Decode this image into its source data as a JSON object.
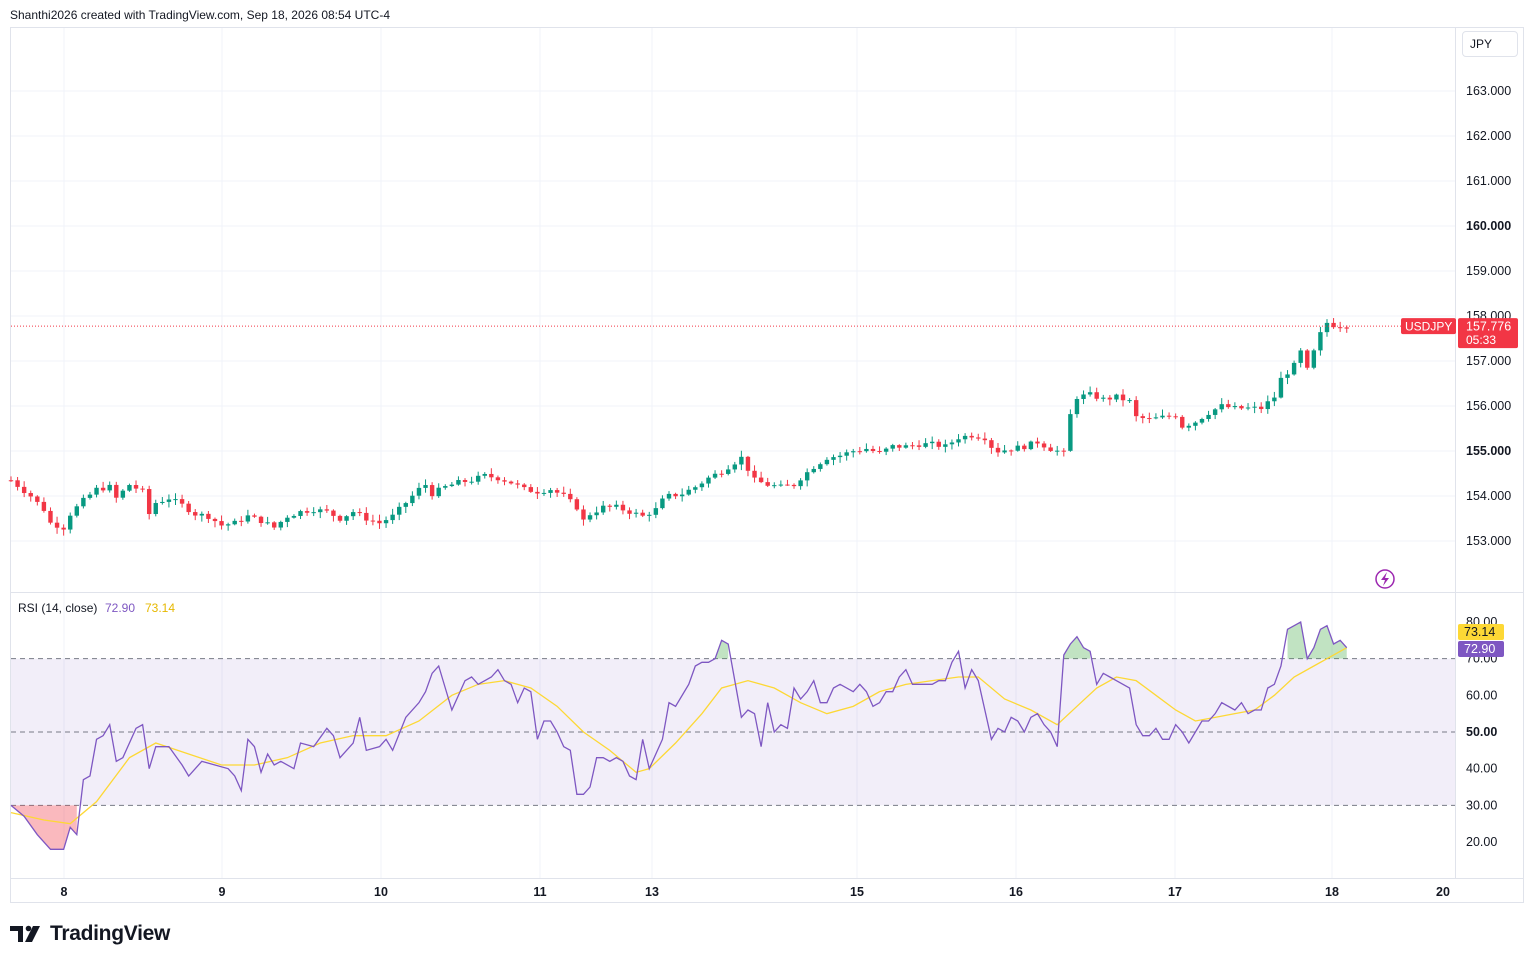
{
  "header": {
    "text": "Shanthi2026 created with TradingView.com, Sep 18, 2026 08:54 UTC-4"
  },
  "footer": {
    "brand": "TradingView"
  },
  "currency": "JPY",
  "colors": {
    "up": "#089981",
    "down": "#f23645",
    "rsi_line": "#7e57c2",
    "rsi_ma": "#fdd835",
    "rsi_band": "#7e57c2",
    "grid": "#f0f3fa",
    "text": "#131722"
  },
  "chart_data": [
    {
      "type": "candlestick",
      "symbol": "USDJPY",
      "last_price": "157.776",
      "countdown": "05:33",
      "y_ticks": [
        "163.000",
        "162.000",
        "161.000",
        "160.000",
        "159.000",
        "158.000",
        "157.000",
        "156.000",
        "155.000",
        "154.000",
        "153.000"
      ],
      "ylim": [
        152.0,
        164.2
      ],
      "x_ticks": [
        "8",
        "8",
        "9",
        "10",
        "11",
        "13",
        "15",
        "16",
        "17",
        "18",
        "20"
      ],
      "close_path": [
        [
          0,
          154.35
        ],
        [
          3,
          154.0
        ],
        [
          5,
          153.7
        ],
        [
          6,
          153.4
        ],
        [
          8,
          153.3
        ],
        [
          9,
          153.6
        ],
        [
          11,
          153.9
        ],
        [
          13,
          154.15
        ],
        [
          15,
          154.2
        ],
        [
          16,
          153.95
        ],
        [
          18,
          154.25
        ],
        [
          20,
          154.1
        ],
        [
          21,
          153.6
        ],
        [
          22,
          153.85
        ],
        [
          24,
          153.95
        ],
        [
          26,
          153.8
        ],
        [
          28,
          153.6
        ],
        [
          30,
          153.55
        ],
        [
          32,
          153.35
        ],
        [
          34,
          153.4
        ],
        [
          36,
          153.55
        ],
        [
          38,
          153.45
        ],
        [
          40,
          153.3
        ],
        [
          42,
          153.55
        ],
        [
          44,
          153.65
        ],
        [
          46,
          153.7
        ],
        [
          48,
          153.65
        ],
        [
          50,
          153.5
        ],
        [
          52,
          153.65
        ],
        [
          54,
          153.5
        ],
        [
          56,
          153.4
        ],
        [
          58,
          153.55
        ],
        [
          60,
          153.85
        ],
        [
          62,
          154.15
        ],
        [
          63,
          154.25
        ],
        [
          64,
          154.05
        ],
        [
          66,
          154.2
        ],
        [
          68,
          154.3
        ],
        [
          70,
          154.35
        ],
        [
          72,
          154.45
        ],
        [
          74,
          154.4
        ],
        [
          76,
          154.3
        ],
        [
          78,
          154.15
        ],
        [
          80,
          154.1
        ],
        [
          82,
          154.15
        ],
        [
          84,
          154.0
        ],
        [
          86,
          153.75
        ],
        [
          87,
          153.45
        ],
        [
          88,
          153.6
        ],
        [
          90,
          153.75
        ],
        [
          92,
          153.75
        ],
        [
          94,
          153.65
        ],
        [
          96,
          153.55
        ],
        [
          98,
          153.7
        ],
        [
          99,
          153.9
        ],
        [
          100,
          154.0
        ],
        [
          102,
          154.05
        ],
        [
          104,
          154.2
        ],
        [
          106,
          154.4
        ],
        [
          108,
          154.55
        ],
        [
          110,
          154.75
        ],
        [
          111,
          154.85
        ],
        [
          112,
          154.6
        ],
        [
          113,
          154.35
        ],
        [
          115,
          154.25
        ],
        [
          117,
          154.2
        ],
        [
          119,
          154.25
        ],
        [
          120,
          154.4
        ],
        [
          122,
          154.65
        ],
        [
          124,
          154.85
        ],
        [
          126,
          154.9
        ],
        [
          128,
          155.0
        ],
        [
          130,
          155.05
        ],
        [
          132,
          154.95
        ],
        [
          134,
          155.1
        ],
        [
          136,
          155.1
        ],
        [
          138,
          155.15
        ],
        [
          140,
          155.15
        ],
        [
          142,
          155.1
        ],
        [
          144,
          155.3
        ],
        [
          146,
          155.35
        ],
        [
          148,
          155.3
        ],
        [
          149,
          155.1
        ],
        [
          150,
          155.0
        ],
        [
          152,
          155.05
        ],
        [
          154,
          155.1
        ],
        [
          156,
          155.2
        ],
        [
          158,
          155.05
        ],
        [
          160,
          154.95
        ],
        [
          161,
          155.8
        ],
        [
          162,
          156.2
        ],
        [
          164,
          156.25
        ],
        [
          166,
          156.15
        ],
        [
          168,
          156.2
        ],
        [
          170,
          156.1
        ],
        [
          171,
          155.75
        ],
        [
          173,
          155.7
        ],
        [
          175,
          155.75
        ],
        [
          177,
          155.8
        ],
        [
          178,
          155.55
        ],
        [
          180,
          155.65
        ],
        [
          182,
          155.85
        ],
        [
          184,
          156.0
        ],
        [
          186,
          155.95
        ],
        [
          188,
          155.95
        ],
        [
          190,
          155.95
        ],
        [
          192,
          156.2
        ],
        [
          193,
          156.6
        ],
        [
          195,
          156.9
        ],
        [
          196,
          157.2
        ],
        [
          197,
          156.8
        ],
        [
          198,
          157.2
        ],
        [
          199,
          157.6
        ],
        [
          200,
          157.85
        ],
        [
          201,
          157.8
        ],
        [
          203,
          157.78
        ]
      ]
    },
    {
      "type": "line",
      "title": "RSI (14, close)",
      "series": [
        {
          "name": "RSI",
          "last": "72.90"
        },
        {
          "name": "MA",
          "last": "73.14"
        }
      ],
      "y_ticks": [
        "80.00",
        "70.00",
        "60.00",
        "50.00",
        "40.00",
        "30.00",
        "20.00"
      ],
      "ylim": [
        12,
        85
      ],
      "band": [
        30,
        70
      ],
      "mid": 50,
      "rsi_path": [
        [
          0,
          30
        ],
        [
          2,
          27
        ],
        [
          4,
          22
        ],
        [
          6,
          18
        ],
        [
          8,
          18
        ],
        [
          9,
          24
        ],
        [
          10,
          22
        ],
        [
          11,
          37
        ],
        [
          12,
          38
        ],
        [
          13,
          48
        ],
        [
          14,
          49
        ],
        [
          15,
          52
        ],
        [
          16,
          42
        ],
        [
          17,
          43
        ],
        [
          19,
          51
        ],
        [
          20,
          52
        ],
        [
          21,
          40
        ],
        [
          22,
          46
        ],
        [
          24,
          46
        ],
        [
          26,
          41
        ],
        [
          27,
          38
        ],
        [
          29,
          42
        ],
        [
          31,
          41
        ],
        [
          33,
          40
        ],
        [
          34,
          38
        ],
        [
          35,
          34
        ],
        [
          36,
          48
        ],
        [
          37,
          46
        ],
        [
          38,
          39
        ],
        [
          39,
          44
        ],
        [
          40,
          41
        ],
        [
          41,
          42
        ],
        [
          43,
          40
        ],
        [
          44,
          47
        ],
        [
          46,
          46
        ],
        [
          48,
          51
        ],
        [
          49,
          49
        ],
        [
          50,
          43
        ],
        [
          52,
          47
        ],
        [
          53,
          54
        ],
        [
          54,
          45
        ],
        [
          56,
          46
        ],
        [
          57,
          48
        ],
        [
          58,
          45
        ],
        [
          60,
          54
        ],
        [
          62,
          58
        ],
        [
          63,
          61
        ],
        [
          64,
          66
        ],
        [
          65,
          68
        ],
        [
          66,
          62
        ],
        [
          67,
          56
        ],
        [
          68,
          60
        ],
        [
          69,
          64
        ],
        [
          70,
          65
        ],
        [
          71,
          63
        ],
        [
          72,
          64
        ],
        [
          73,
          65
        ],
        [
          74,
          67
        ],
        [
          75,
          64
        ],
        [
          76,
          63
        ],
        [
          77,
          58
        ],
        [
          78,
          62
        ],
        [
          79,
          61
        ],
        [
          80,
          48
        ],
        [
          81,
          53
        ],
        [
          82,
          53
        ],
        [
          83,
          50
        ],
        [
          84,
          46
        ],
        [
          85,
          45
        ],
        [
          86,
          33
        ],
        [
          87,
          33
        ],
        [
          88,
          35
        ],
        [
          89,
          43
        ],
        [
          90,
          43
        ],
        [
          91,
          42
        ],
        [
          92,
          43
        ],
        [
          93,
          42
        ],
        [
          94,
          38
        ],
        [
          95,
          37
        ],
        [
          96,
          48
        ],
        [
          97,
          40
        ],
        [
          98,
          44
        ],
        [
          99,
          48
        ],
        [
          100,
          58
        ],
        [
          101,
          57
        ],
        [
          103,
          63
        ],
        [
          104,
          68
        ],
        [
          105,
          69
        ],
        [
          106,
          69
        ],
        [
          107,
          70
        ],
        [
          108,
          75
        ],
        [
          109,
          74
        ],
        [
          110,
          64
        ],
        [
          111,
          54
        ],
        [
          112,
          56
        ],
        [
          113,
          55
        ],
        [
          114,
          46
        ],
        [
          115,
          58
        ],
        [
          116,
          50
        ],
        [
          117,
          52
        ],
        [
          118,
          51
        ],
        [
          119,
          62
        ],
        [
          120,
          59
        ],
        [
          121,
          61
        ],
        [
          122,
          64
        ],
        [
          123,
          58
        ],
        [
          124,
          58
        ],
        [
          125,
          62
        ],
        [
          126,
          63
        ],
        [
          128,
          61
        ],
        [
          129,
          63
        ],
        [
          130,
          61
        ],
        [
          131,
          57
        ],
        [
          132,
          58
        ],
        [
          133,
          61
        ],
        [
          134,
          61
        ],
        [
          135,
          65
        ],
        [
          136,
          67
        ],
        [
          137,
          63
        ],
        [
          138,
          63
        ],
        [
          139,
          63
        ],
        [
          140,
          63
        ],
        [
          141,
          64
        ],
        [
          142,
          64
        ],
        [
          143,
          69
        ],
        [
          144,
          72
        ],
        [
          145,
          62
        ],
        [
          146,
          67
        ],
        [
          147,
          64
        ],
        [
          148,
          56
        ],
        [
          149,
          48
        ],
        [
          150,
          51
        ],
        [
          151,
          50
        ],
        [
          152,
          54
        ],
        [
          153,
          53
        ],
        [
          154,
          50
        ],
        [
          155,
          54
        ],
        [
          156,
          55
        ],
        [
          157,
          52
        ],
        [
          158,
          50
        ],
        [
          159,
          46
        ],
        [
          160,
          71
        ],
        [
          161,
          74
        ],
        [
          162,
          76
        ],
        [
          163,
          73
        ],
        [
          164,
          72
        ],
        [
          165,
          63
        ],
        [
          166,
          66
        ],
        [
          167,
          65
        ],
        [
          168,
          64
        ],
        [
          170,
          62
        ],
        [
          171,
          52
        ],
        [
          172,
          49
        ],
        [
          173,
          49
        ],
        [
          174,
          51
        ],
        [
          175,
          48
        ],
        [
          176,
          48
        ],
        [
          177,
          52
        ],
        [
          178,
          50
        ],
        [
          179,
          47
        ],
        [
          180,
          50
        ],
        [
          181,
          53
        ],
        [
          182,
          53
        ],
        [
          183,
          55
        ],
        [
          184,
          58
        ],
        [
          186,
          56
        ],
        [
          187,
          58
        ],
        [
          188,
          55
        ],
        [
          189,
          56
        ],
        [
          190,
          56
        ],
        [
          191,
          62
        ],
        [
          192,
          63
        ],
        [
          193,
          68
        ],
        [
          194,
          78
        ],
        [
          195,
          79
        ],
        [
          196,
          80
        ],
        [
          197,
          70
        ],
        [
          198,
          73
        ],
        [
          199,
          78
        ],
        [
          200,
          79
        ],
        [
          201,
          74
        ],
        [
          202,
          75
        ],
        [
          203,
          73
        ]
      ],
      "ma_path": [
        [
          0,
          28
        ],
        [
          5,
          26
        ],
        [
          9,
          25
        ],
        [
          13,
          31
        ],
        [
          18,
          43
        ],
        [
          22,
          47
        ],
        [
          27,
          44
        ],
        [
          32,
          41
        ],
        [
          37,
          41
        ],
        [
          42,
          43
        ],
        [
          47,
          47
        ],
        [
          52,
          49
        ],
        [
          57,
          49
        ],
        [
          62,
          53
        ],
        [
          67,
          60
        ],
        [
          71,
          63
        ],
        [
          75,
          64
        ],
        [
          79,
          62
        ],
        [
          83,
          57
        ],
        [
          87,
          50
        ],
        [
          91,
          45
        ],
        [
          95,
          39
        ],
        [
          97,
          40
        ],
        [
          101,
          47
        ],
        [
          105,
          55
        ],
        [
          108,
          62
        ],
        [
          112,
          64
        ],
        [
          116,
          62
        ],
        [
          120,
          58
        ],
        [
          124,
          55
        ],
        [
          128,
          57
        ],
        [
          132,
          61
        ],
        [
          136,
          63
        ],
        [
          140,
          64
        ],
        [
          144,
          65
        ],
        [
          147,
          65
        ],
        [
          151,
          59
        ],
        [
          155,
          56
        ],
        [
          159,
          52
        ],
        [
          162,
          57
        ],
        [
          165,
          62
        ],
        [
          168,
          65
        ],
        [
          171,
          64
        ],
        [
          174,
          60
        ],
        [
          177,
          56
        ],
        [
          180,
          53
        ],
        [
          183,
          54
        ],
        [
          186,
          55
        ],
        [
          189,
          56
        ],
        [
          192,
          60
        ],
        [
          195,
          65
        ],
        [
          198,
          68
        ],
        [
          200,
          70
        ],
        [
          203,
          73
        ]
      ]
    }
  ]
}
